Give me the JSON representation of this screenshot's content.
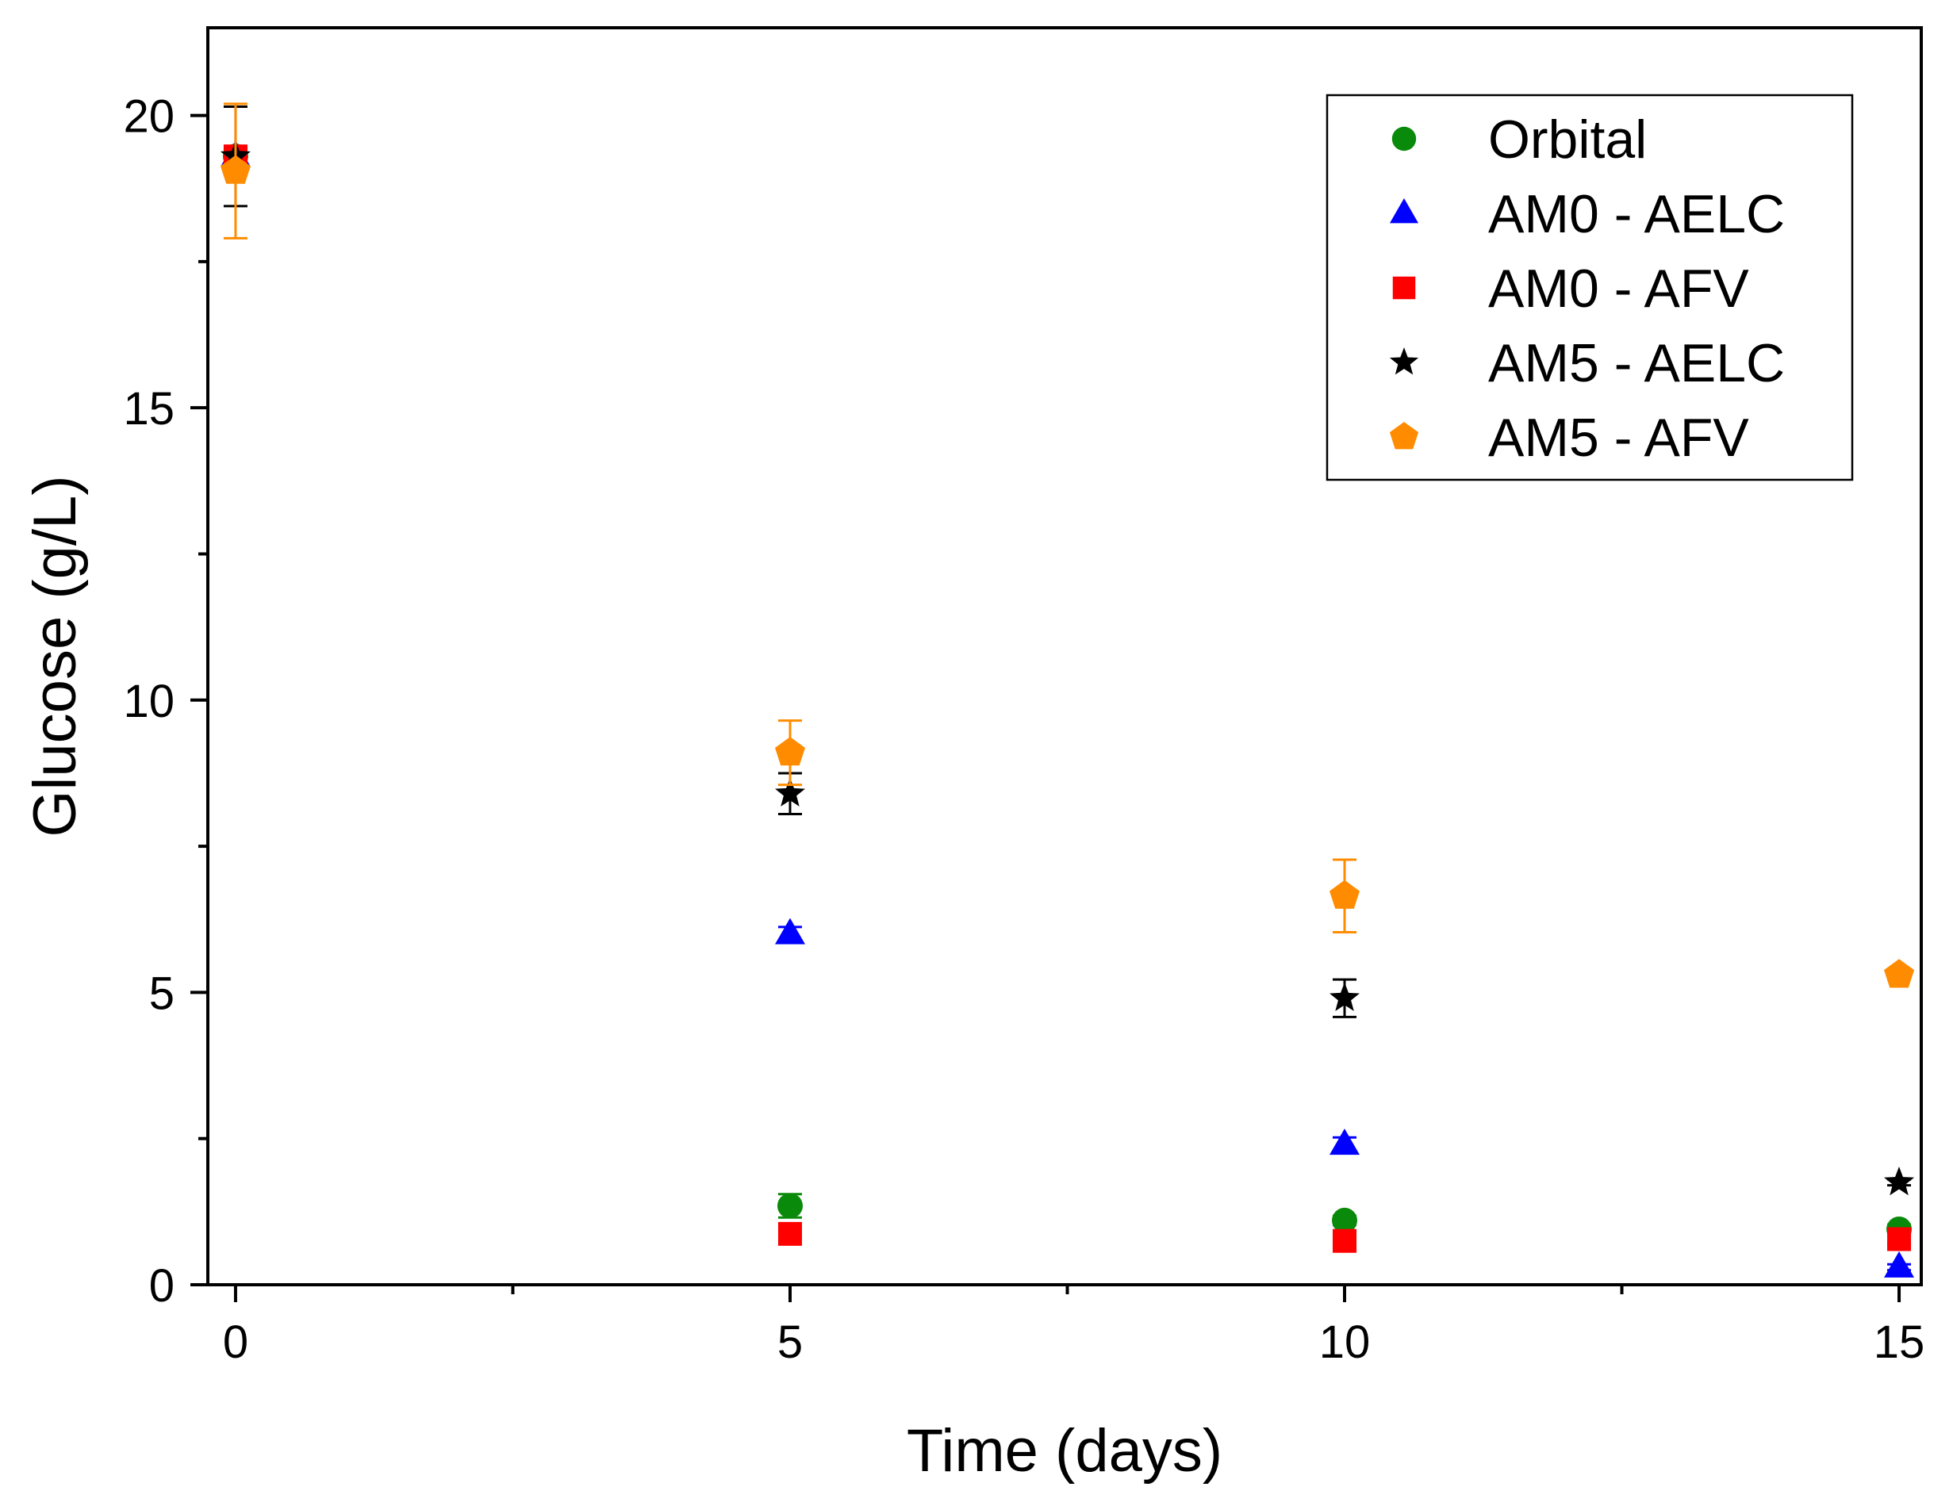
{
  "chart_data": {
    "type": "scatter",
    "title": "",
    "xlabel": "Time (days)",
    "ylabel": "Glucose (g/L)",
    "xlim": [
      -0.25,
      15.2
    ],
    "ylim": [
      0,
      21.5
    ],
    "x_ticks": [
      0,
      5,
      10,
      15
    ],
    "x_minor_ticks": [
      2.5,
      7.5,
      12.5
    ],
    "y_ticks": [
      0,
      5,
      10,
      15,
      20
    ],
    "grid": false,
    "legend_position": "top-right",
    "series": [
      {
        "name": "Orbital",
        "marker": "circle",
        "color": "#0a8a0a",
        "x": [
          0,
          5,
          10,
          15
        ],
        "y": [
          19.3,
          1.35,
          1.1,
          0.95
        ],
        "err": [
          0.15,
          0.2,
          0.08,
          0.08
        ]
      },
      {
        "name": "AM0 - AELC",
        "marker": "triangle",
        "color": "#0000ff",
        "x": [
          0,
          5,
          10,
          15
        ],
        "y": [
          19.3,
          6.0,
          2.4,
          0.3
        ],
        "err": [
          0.1,
          0.12,
          0.12,
          0.05
        ]
      },
      {
        "name": "AM0 - AFV",
        "marker": "square",
        "color": "#ff0000",
        "x": [
          0,
          5,
          10,
          15
        ],
        "y": [
          19.3,
          0.87,
          0.75,
          0.78
        ],
        "err": [
          0.1,
          0.12,
          0.1,
          0.08
        ]
      },
      {
        "name": "AM5 - AELC",
        "marker": "star",
        "color": "#000000",
        "x": [
          0,
          5,
          10,
          15
        ],
        "y": [
          19.3,
          8.4,
          4.9,
          1.75
        ],
        "err": [
          0.85,
          0.35,
          0.32,
          0.05
        ]
      },
      {
        "name": "AM5 - AFV",
        "marker": "pentagon",
        "color": "#ff8c00",
        "x": [
          0,
          5,
          10,
          15
        ],
        "y": [
          19.05,
          9.1,
          6.65,
          5.3
        ],
        "err": [
          1.15,
          0.55,
          0.62,
          0.08
        ]
      }
    ]
  }
}
